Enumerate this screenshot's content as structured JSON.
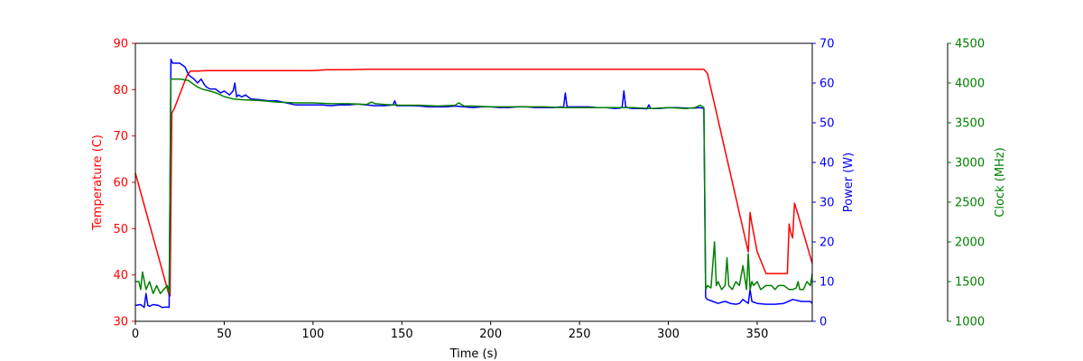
{
  "chart_data": {
    "type": "line",
    "title": "",
    "xlabel": "Time (s)",
    "xlim": [
      0,
      381
    ],
    "xticks": [
      0,
      50,
      100,
      150,
      200,
      250,
      300,
      350
    ],
    "grid": false,
    "legend": "none",
    "axes": [
      {
        "id": "temp",
        "label": "Temperature (C)",
        "color": "#ff0000",
        "side": "left",
        "ylim": [
          30,
          90
        ],
        "ticks": [
          30,
          40,
          50,
          60,
          70,
          80,
          90
        ]
      },
      {
        "id": "power",
        "label": "Power (W)",
        "color": "#0000ff",
        "side": "right",
        "ylim": [
          0,
          70
        ],
        "ticks": [
          0,
          10,
          20,
          30,
          40,
          50,
          60,
          70
        ]
      },
      {
        "id": "clock",
        "label": "Clock (MHz)",
        "color": "#008000",
        "side": "right-offset",
        "ylim": [
          1000,
          4500
        ],
        "ticks": [
          1000,
          1500,
          2000,
          2500,
          3000,
          3500,
          4000,
          4500
        ]
      }
    ],
    "series": [
      {
        "axis": "temp",
        "color": "#ff0000",
        "x": [
          0,
          19,
          19.5,
          20.5,
          22,
          25,
          29,
          31,
          35,
          40,
          50,
          100,
          108,
          120,
          130,
          200,
          300,
          320,
          322,
          345,
          346,
          347,
          350,
          355,
          365,
          367,
          368,
          369,
          370,
          371,
          373,
          381
        ],
        "y": [
          62,
          35.6,
          35.5,
          75,
          76,
          79,
          83,
          84,
          84,
          84.1,
          84.1,
          84.1,
          84.3,
          84.3,
          84.4,
          84.4,
          84.4,
          84.4,
          83.5,
          45,
          53.5,
          51,
          45,
          40.3,
          40.3,
          40.3,
          51,
          49,
          48,
          55.5,
          53,
          42.5
        ]
      },
      {
        "axis": "power",
        "color": "#0000ff",
        "x": [
          0,
          3,
          5,
          6,
          7,
          8,
          10,
          13,
          15,
          18,
          19,
          20,
          21,
          22,
          25,
          28,
          30,
          33,
          35,
          37,
          39,
          40,
          42,
          45,
          48,
          50,
          53,
          55,
          56,
          57,
          58,
          60,
          62,
          65,
          70,
          75,
          80,
          85,
          90,
          95,
          100,
          105,
          110,
          115,
          120,
          125,
          130,
          135,
          140,
          145,
          146,
          147,
          150,
          155,
          160,
          165,
          170,
          175,
          180,
          185,
          190,
          195,
          200,
          205,
          210,
          215,
          220,
          225,
          230,
          235,
          240,
          241,
          242,
          243,
          245,
          250,
          255,
          260,
          265,
          270,
          273,
          274,
          275,
          276,
          278,
          280,
          285,
          288,
          289,
          290,
          292,
          295,
          300,
          305,
          310,
          315,
          317,
          319,
          320,
          321,
          322,
          325,
          328,
          330,
          332,
          335,
          338,
          340,
          342,
          345,
          346,
          347,
          350,
          355,
          360,
          365,
          370,
          375,
          380,
          381
        ],
        "y": [
          4,
          4.2,
          3.5,
          7,
          4,
          3.8,
          4.2,
          4,
          3.5,
          3.6,
          3.5,
          66,
          65,
          65,
          65,
          64,
          62,
          61,
          60,
          61,
          59.5,
          59,
          58.5,
          58.5,
          57.5,
          58,
          57,
          58,
          60,
          56.5,
          57,
          56.5,
          57,
          56,
          55.8,
          55.5,
          55.5,
          55,
          54.5,
          54.5,
          54.5,
          54.5,
          54.3,
          54.5,
          54.5,
          54.7,
          54.5,
          54.3,
          54.3,
          54.5,
          55.5,
          54.3,
          54.3,
          54.3,
          54.2,
          54,
          54,
          54,
          54.2,
          54,
          53.8,
          54,
          54,
          53.8,
          53.8,
          54,
          54,
          53.8,
          53.8,
          53.8,
          54,
          53.8,
          57.5,
          54,
          54,
          54,
          54,
          53.8,
          53.8,
          53.6,
          53.7,
          54,
          58,
          54,
          53.7,
          53.6,
          53.6,
          53.5,
          54.5,
          53.6,
          53.6,
          53.6,
          53.8,
          53.8,
          53.7,
          53.7,
          53.8,
          53.7,
          53.6,
          6,
          5.5,
          5,
          4.5,
          4.8,
          5,
          4.5,
          4.3,
          4.5,
          5.5,
          4.5,
          8,
          5,
          4.5,
          4.3,
          4.3,
          4.5,
          5.5,
          5,
          5,
          4.5
        ]
      },
      {
        "axis": "clock",
        "color": "#008000",
        "x": [
          0,
          2,
          3,
          4,
          6,
          8,
          10,
          12,
          14,
          16,
          18,
          19,
          20,
          22,
          25,
          28,
          30,
          33,
          35,
          38,
          40,
          45,
          50,
          55,
          60,
          70,
          80,
          90,
          100,
          110,
          120,
          130,
          133,
          135,
          140,
          150,
          160,
          170,
          180,
          182,
          185,
          190,
          200,
          210,
          220,
          230,
          240,
          250,
          260,
          270,
          280,
          290,
          300,
          310,
          315,
          318,
          320,
          321,
          322,
          324,
          326,
          327,
          328,
          330,
          332,
          333,
          334,
          336,
          338,
          340,
          342,
          344,
          345,
          346,
          347,
          348,
          350,
          352,
          355,
          358,
          360,
          362,
          365,
          368,
          370,
          372,
          373,
          374,
          376,
          378,
          380,
          381
        ],
        "y": [
          1500,
          1500,
          1400,
          1620,
          1400,
          1500,
          1350,
          1450,
          1350,
          1400,
          1450,
          1350,
          4050,
          4050,
          4050,
          4040,
          4030,
          3980,
          3950,
          3920,
          3910,
          3880,
          3830,
          3800,
          3790,
          3780,
          3760,
          3750,
          3750,
          3740,
          3740,
          3730,
          3760,
          3740,
          3730,
          3720,
          3720,
          3710,
          3720,
          3750,
          3710,
          3710,
          3700,
          3700,
          3700,
          3700,
          3690,
          3690,
          3690,
          3690,
          3690,
          3680,
          3690,
          3680,
          3690,
          3720,
          3690,
          1400,
          1450,
          1420,
          2000,
          1450,
          1500,
          1400,
          1450,
          1800,
          1450,
          1400,
          1500,
          1450,
          1700,
          1400,
          1850,
          1400,
          1500,
          1450,
          1500,
          1400,
          1450,
          1450,
          1400,
          1450,
          1450,
          1400,
          1400,
          1420,
          1500,
          1400,
          1400,
          1500,
          1450,
          1600
        ]
      }
    ]
  }
}
